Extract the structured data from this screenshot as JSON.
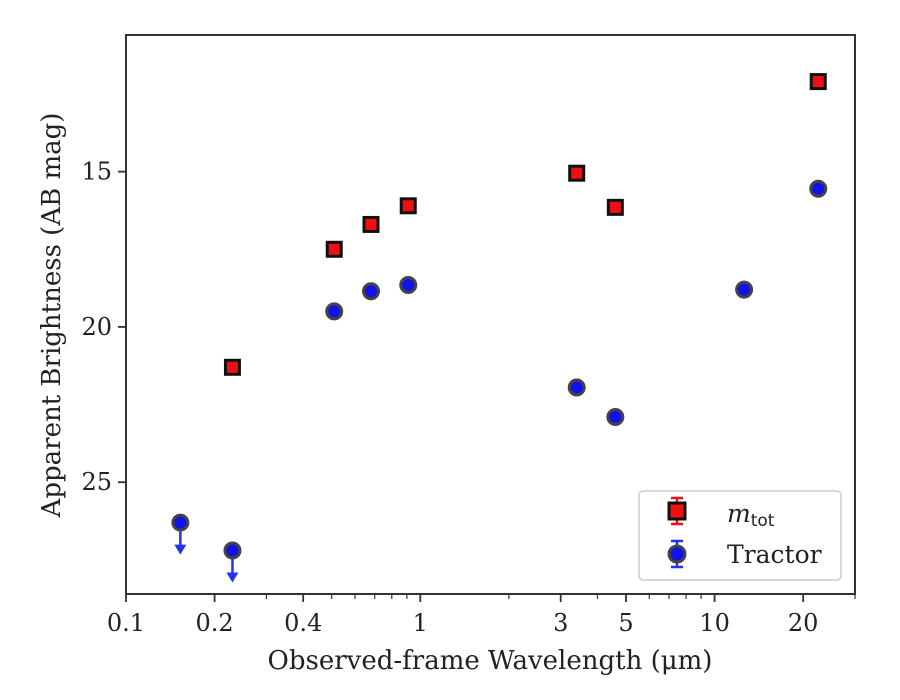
{
  "chart_data": {
    "type": "scatter",
    "xlabel": "Observed-frame Wavelength (μm)",
    "ylabel": "Apparent Brightness (AB mag)",
    "x_scale": "log",
    "x_range": [
      0.1,
      30
    ],
    "y_range": [
      28.6,
      10.6
    ],
    "y_inverted": true,
    "x_ticks": [
      0.1,
      0.2,
      0.4,
      1,
      3,
      5,
      10,
      20
    ],
    "x_tick_labels": [
      "0.1",
      "0.2",
      "0.4",
      "1",
      "3",
      "5",
      "10",
      "20"
    ],
    "y_ticks": [
      15,
      20,
      25
    ],
    "y_tick_labels": [
      "15",
      "20",
      "25"
    ],
    "grid": false,
    "legend_position": "lower-right",
    "series": [
      {
        "name": "m_tot",
        "marker": "square",
        "color": "#ee1111",
        "edgecolor": "#111111",
        "points": [
          {
            "x": 0.23,
            "y": 21.3
          },
          {
            "x": 0.51,
            "y": 17.5
          },
          {
            "x": 0.68,
            "y": 16.7
          },
          {
            "x": 0.91,
            "y": 16.1
          },
          {
            "x": 3.4,
            "y": 15.05
          },
          {
            "x": 4.6,
            "y": 16.15
          },
          {
            "x": 22.5,
            "y": 12.1
          }
        ]
      },
      {
        "name": "Tractor",
        "marker": "circle",
        "color": "#1111ee",
        "edgecolor": "#444444",
        "upper_limit_color": "#2233ee",
        "points": [
          {
            "x": 0.153,
            "y": 26.3,
            "upper_limit": true
          },
          {
            "x": 0.23,
            "y": 27.2,
            "upper_limit": true
          },
          {
            "x": 0.51,
            "y": 19.5
          },
          {
            "x": 0.68,
            "y": 18.85
          },
          {
            "x": 0.91,
            "y": 18.65
          },
          {
            "x": 3.4,
            "y": 21.95
          },
          {
            "x": 4.6,
            "y": 22.9
          },
          {
            "x": 12.6,
            "y": 18.8
          },
          {
            "x": 22.5,
            "y": 15.55
          }
        ]
      }
    ]
  },
  "legend": {
    "mtot_main": "m",
    "mtot_sub": "tot",
    "tractor": "Tractor"
  }
}
